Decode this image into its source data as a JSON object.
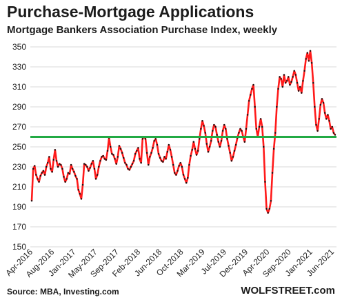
{
  "chart_data": {
    "type": "line",
    "title": "Purchase-Mortgage  Applications",
    "subtitle": "Mortgage Bankers Association Purchase Index, weekly",
    "source": "Source: MBA, Investing.com",
    "brand": "WOLFSTREET.com",
    "ylim": [
      150,
      350
    ],
    "yticks": [
      150,
      170,
      190,
      210,
      230,
      250,
      270,
      290,
      310,
      330,
      350
    ],
    "xticks": [
      "Apr-2016",
      "Aug-2016",
      "Jan-2017",
      "May-2017",
      "Sep-2017",
      "Feb-2018",
      "Jun-2018",
      "Oct-2018",
      "Mar-2019",
      "Jul-2019",
      "Dec-2019",
      "Apr-2020",
      "Sep-2020",
      "Jan-2021",
      "Jun-2021"
    ],
    "reference_line": 260,
    "series_color": "#ff1a1a",
    "reference_color": "#22aa44",
    "series": [
      {
        "values": [
          196,
          228,
          231,
          222,
          218,
          215,
          221,
          224,
          226,
          222,
          230,
          234,
          240,
          228,
          225,
          237,
          247,
          236,
          230,
          233,
          232,
          228,
          220,
          215,
          218,
          224,
          223,
          232,
          228,
          225,
          221,
          218,
          207,
          203,
          198,
          212,
          233,
          232,
          230,
          226,
          229,
          233,
          236,
          228,
          218,
          222,
          230,
          236,
          240,
          241,
          238,
          237,
          246,
          259,
          250,
          243,
          242,
          238,
          233,
          240,
          251,
          248,
          244,
          239,
          234,
          232,
          228,
          227,
          230,
          233,
          236,
          243,
          246,
          249,
          238,
          234,
          258,
          260,
          258,
          244,
          232,
          240,
          244,
          249,
          256,
          258,
          252,
          243,
          239,
          236,
          235,
          240,
          238,
          245,
          252,
          247,
          240,
          232,
          224,
          222,
          226,
          231,
          234,
          230,
          222,
          218,
          214,
          219,
          232,
          241,
          247,
          255,
          248,
          242,
          246,
          258,
          268,
          276,
          271,
          264,
          253,
          245,
          250,
          256,
          266,
          272,
          270,
          262,
          255,
          250,
          256,
          266,
          272,
          268,
          258,
          251,
          244,
          236,
          240,
          246,
          252,
          259,
          264,
          268,
          266,
          260,
          255,
          268,
          282,
          296,
          302,
          308,
          312,
          290,
          268,
          260,
          270,
          278,
          270,
          250,
          215,
          188,
          184,
          188,
          196,
          224,
          248,
          264,
          290,
          308,
          320,
          318,
          310,
          322,
          314,
          316,
          320,
          312,
          315,
          320,
          326,
          322,
          314,
          306,
          310,
          304,
          316,
          326,
          338,
          344,
          336,
          346,
          334,
          314,
          290,
          272,
          266,
          278,
          292,
          298,
          294,
          284,
          278,
          282,
          276,
          268,
          270,
          264,
          262
        ]
      }
    ]
  }
}
